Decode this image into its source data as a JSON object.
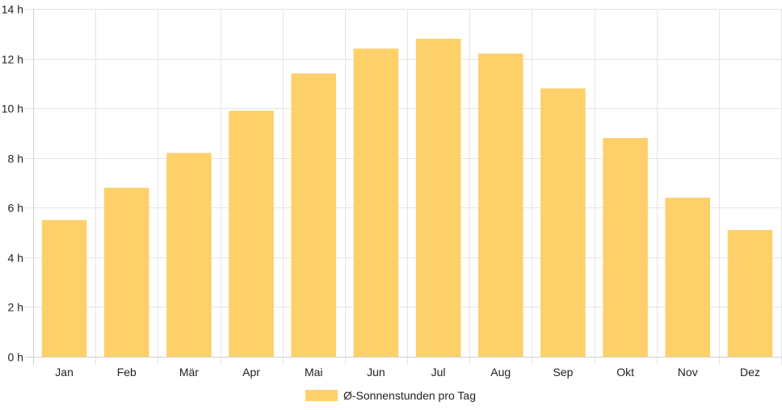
{
  "chart_data": {
    "type": "bar",
    "categories": [
      "Jan",
      "Feb",
      "Mär",
      "Apr",
      "Mai",
      "Jun",
      "Jul",
      "Aug",
      "Sep",
      "Okt",
      "Nov",
      "Dez"
    ],
    "series": [
      {
        "name": "Ø-Sonnenstunden pro Tag",
        "values": [
          5.5,
          6.8,
          8.2,
          9.9,
          11.4,
          12.4,
          12.8,
          12.2,
          10.8,
          8.8,
          6.4,
          5.1
        ]
      }
    ],
    "ylim": [
      0,
      14
    ],
    "yticks": [
      0,
      2,
      4,
      6,
      8,
      10,
      12,
      14
    ],
    "ytick_labels": [
      "0 h",
      "2 h",
      "4 h",
      "6 h",
      "8 h",
      "10 h",
      "12 h",
      "14 h"
    ],
    "grid": true,
    "legend_position": "bottom",
    "colors": {
      "bar": "#fed06a",
      "grid": "#e5e5e5",
      "axis": "#cfcfcf"
    }
  }
}
